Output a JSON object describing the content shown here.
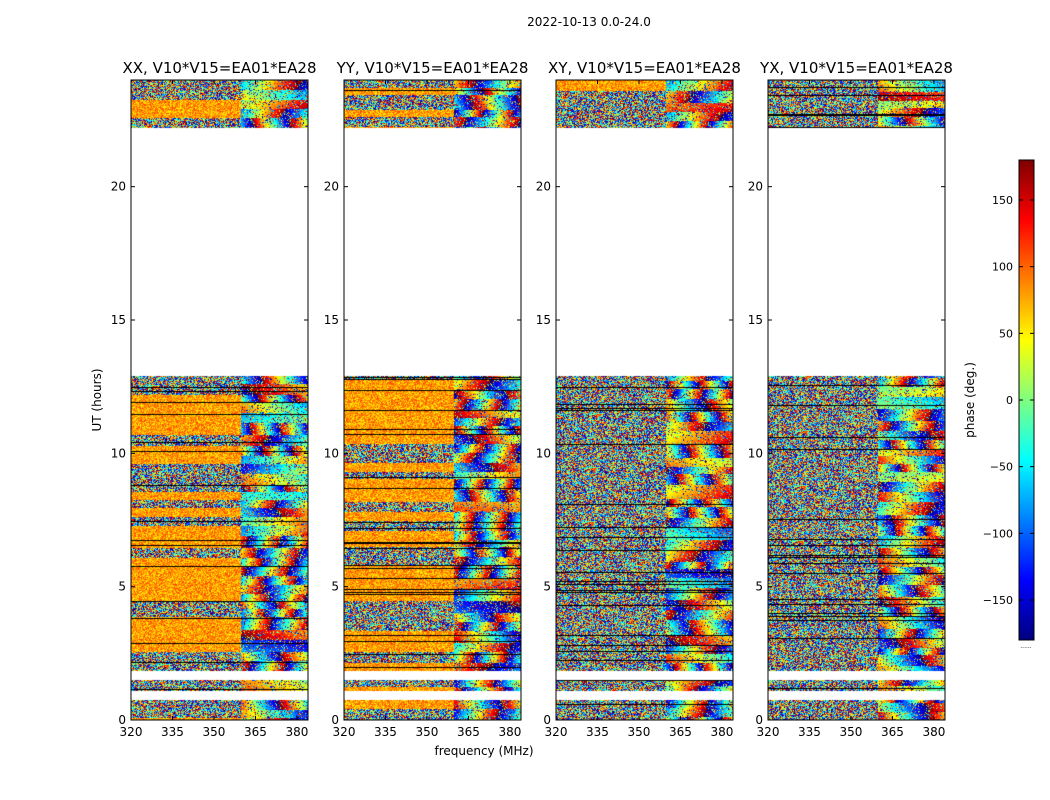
{
  "chart_data": {
    "type": "heatmap",
    "title": "2022-10-13 0.0-24.0",
    "xlabel": "frequency (MHz)",
    "ylabel": "UT (hours)",
    "xlim": [
      320,
      384
    ],
    "ylim": [
      0,
      24
    ],
    "xticks": [
      320,
      335,
      350,
      365,
      380
    ],
    "yticks": [
      0,
      5,
      10,
      15,
      20
    ],
    "panels": [
      {
        "pol": "XX",
        "title": "XX, V10*V15=EA01*EA28",
        "strong_phase": true
      },
      {
        "pol": "YY",
        "title": "YY, V10*V15=EA01*EA28",
        "strong_phase": true
      },
      {
        "pol": "XY",
        "title": "XY, V10*V15=EA01*EA28",
        "strong_phase": false
      },
      {
        "pol": "YX",
        "title": "YX, V10*V15=EA01*EA28",
        "strong_phase": false
      }
    ],
    "data_segments_hours": [
      [
        0.0,
        0.75
      ],
      [
        1.1,
        1.5
      ],
      [
        1.85,
        12.9
      ],
      [
        22.2,
        24.0
      ]
    ],
    "colorbar": {
      "label": "phase (deg.)",
      "range": [
        -180,
        180
      ],
      "ticks": [
        150,
        100,
        50,
        0,
        -50,
        -100,
        -150
      ],
      "tick_labels": [
        "150",
        "100",
        "50",
        "0",
        "−50",
        "−100",
        "−150"
      ],
      "colormap": "jet",
      "footer": "......"
    }
  }
}
